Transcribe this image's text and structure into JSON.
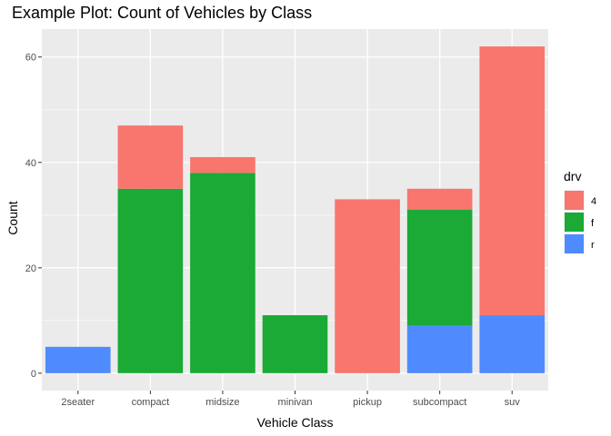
{
  "chart_data": {
    "type": "bar",
    "stacked": true,
    "title": "Example Plot: Count of Vehicles by Class",
    "xlabel": "Vehicle Class",
    "ylabel": "Count",
    "categories": [
      "2seater",
      "compact",
      "midsize",
      "minivan",
      "pickup",
      "subcompact",
      "suv"
    ],
    "series": [
      {
        "name": "4",
        "color": "#f8766d",
        "values": [
          0,
          12,
          3,
          0,
          33,
          4,
          51
        ]
      },
      {
        "name": "f",
        "color": "#1aaa35",
        "values": [
          0,
          35,
          38,
          11,
          0,
          22,
          0
        ]
      },
      {
        "name": "r",
        "color": "#4f8bff",
        "values": [
          5,
          0,
          0,
          0,
          0,
          9,
          11
        ]
      }
    ],
    "stack_order_bottom_to_top": [
      "r",
      "f",
      "4"
    ],
    "ylim": [
      0,
      65
    ],
    "yticks": [
      0,
      20,
      40,
      60
    ],
    "grid": true,
    "legend": {
      "title": "drv",
      "placement": "right"
    }
  }
}
